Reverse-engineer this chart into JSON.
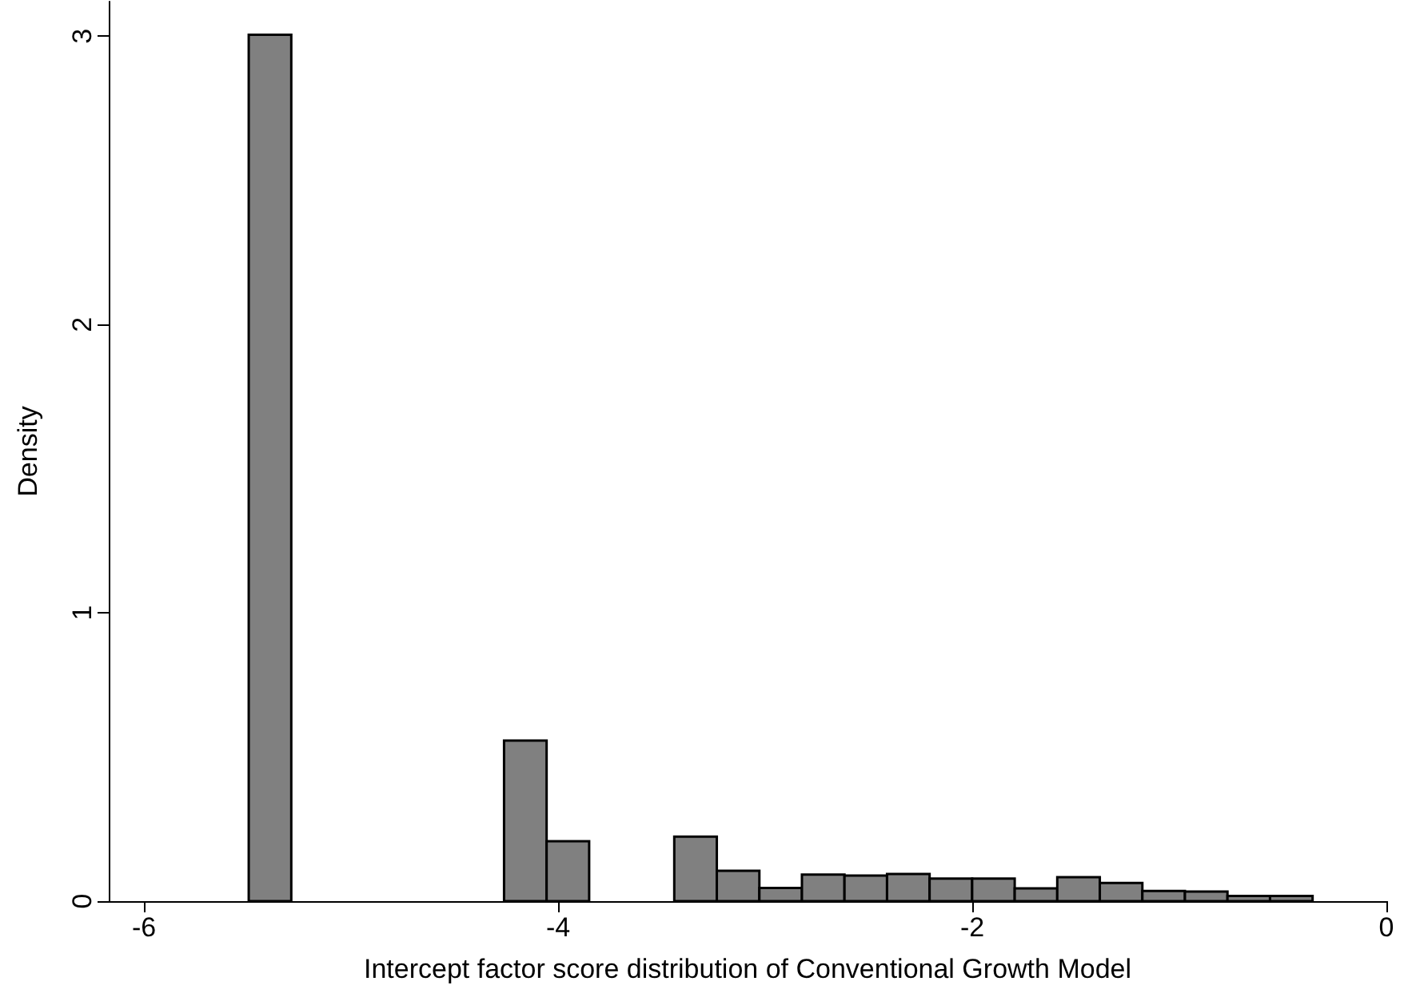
{
  "chart_data": {
    "type": "histogram",
    "xlabel": "Intercept factor score distribution of Conventional Growth Model",
    "ylabel": "Density",
    "bins": [
      -5.494,
      -5.2885,
      -5.083,
      -4.8775,
      -4.672,
      -4.4665,
      -4.261,
      -4.0555,
      -3.85,
      -3.6445,
      -3.439,
      -3.2335,
      -3.028,
      -2.8225,
      -2.617,
      -2.4115,
      -2.206,
      -2.0005,
      -1.795,
      -1.5895,
      -1.384,
      -1.1785,
      -0.973,
      -0.7675,
      -0.562,
      -0.3565
    ],
    "values": [
      3.005,
      0,
      0,
      0,
      0,
      0,
      0.557,
      0.208,
      0,
      0,
      0.224,
      0.105,
      0.046,
      0.092,
      0.089,
      0.094,
      0.078,
      0.078,
      0.044,
      0.083,
      0.063,
      0.035,
      0.033,
      0.018,
      0.018
    ],
    "color": "#808080",
    "xlim": [
      -6.17,
      0
    ],
    "xticks": [
      -6,
      -4,
      -2,
      0
    ],
    "ylim": [
      0,
      3.12
    ],
    "yticks": [
      0,
      1,
      2,
      3
    ],
    "grid": false
  }
}
